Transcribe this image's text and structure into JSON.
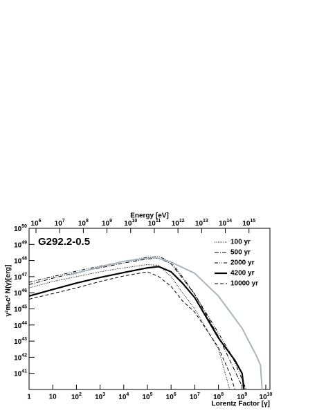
{
  "chart_data": {
    "type": "line",
    "annotation": "G292.2-0.5",
    "xlabel": "Lorentz Factor [γ]",
    "ylabel": "γ²mₑc² N(γ)[erg]",
    "x2label": "Energy [eV]",
    "log_x": true,
    "log_y": true,
    "legend": "upper right",
    "xlim": [
      1,
      15000000000
    ],
    "xticks": [
      1,
      10,
      {
        "value": 100,
        "label": "10^2"
      },
      {
        "value": 1000,
        "label": "10^3"
      },
      {
        "value": 10000,
        "label": "10^4"
      },
      {
        "value": 100000,
        "label": "10^5"
      },
      {
        "value": 1000000,
        "label": "10^6"
      },
      {
        "value": 10000000,
        "label": "10^7"
      },
      {
        "value": 100000000,
        "label": "10^8"
      },
      {
        "value": 1000000000,
        "label": "10^9"
      },
      {
        "value": 10000000000,
        "label": "10^10"
      }
    ],
    "x2lim": [
      511000,
      7665000000000000
    ],
    "x2ticks": [
      {
        "value": 1000000,
        "label": "10^6"
      },
      {
        "value": 10000000,
        "label": "10^7"
      },
      {
        "value": 100000000,
        "label": "10^8"
      },
      {
        "value": 1000000000,
        "label": "10^9"
      },
      {
        "value": 10000000000,
        "label": "10^10"
      },
      {
        "value": 100000000000,
        "label": "10^11"
      },
      {
        "value": 1000000000000,
        "label": "10^12"
      },
      {
        "value": 10000000000000,
        "label": "10^13"
      },
      {
        "value": 100000000000000,
        "label": "10^14"
      },
      {
        "value": 1000000000000000,
        "label": "10^15"
      }
    ],
    "ylim": [
      1e+40,
      1e+50
    ],
    "yticks": [
      {
        "value": 1e+41,
        "label": "10^41"
      },
      {
        "value": 1e+42,
        "label": "10^42"
      },
      {
        "value": 1e+43,
        "label": "10^43"
      },
      {
        "value": 1e+44,
        "label": "10^44"
      },
      {
        "value": 1e+45,
        "label": "10^45"
      },
      {
        "value": 1e+46,
        "label": "10^46"
      },
      {
        "value": 1e+47,
        "label": "10^47"
      },
      {
        "value": 1e+48,
        "label": "10^48"
      },
      {
        "value": 1e+49,
        "label": "10^49"
      },
      {
        "value": 1e+50,
        "label": "10^50"
      }
    ],
    "series": [
      {
        "name": "100 yr",
        "color": "#000000",
        "dash": "1,1.5",
        "width": 1,
        "x": [
          1,
          10,
          100,
          1000,
          10000,
          100000,
          300000,
          1000000,
          3000000,
          10000000,
          100000000,
          300000000
        ],
        "values": [
          2e+46,
          5e+46,
          1e+47,
          2e+47,
          3.5e+47,
          5.6e+47,
          5e+47,
          1e+47,
          1e+46,
          1e+45,
          3.2e+42,
          1e+40
        ]
      },
      {
        "name": "500 yr",
        "color": "#000000",
        "dash": "6,2,1,2",
        "width": 1,
        "x": [
          1,
          10,
          100,
          1000,
          10000,
          100000,
          300000,
          1000000,
          3000000,
          10000000,
          100000000,
          1000000000
        ],
        "values": [
          3.2e+46,
          8e+46,
          1.8e+47,
          3.5e+47,
          7e+47,
          1.26e+48,
          1.4e+48,
          6.3e+47,
          8e+46,
          8e+45,
          2e+43,
          1.6e+40
        ]
      },
      {
        "name": "2000 yr",
        "color": "#000000",
        "dash": "5,2,1,2,1,2",
        "width": 1,
        "x": [
          1,
          10,
          100,
          1000,
          10000,
          100000,
          300000,
          1000000,
          3000000,
          10000000,
          100000000,
          400000000,
          1500000000
        ],
        "values": [
          4.5e+46,
          1e+47,
          2.2e+47,
          4.5e+47,
          8.9e+47,
          1.6e+48,
          1.8e+48,
          8e+47,
          1e+47,
          8e+45,
          3.2e+43,
          1e+42,
          1e+40
        ]
      },
      {
        "name": "4200 yr",
        "color": "#000000",
        "dash": "none",
        "width": 2.2,
        "x": [
          1,
          10,
          100,
          1000,
          10000,
          100000,
          300000,
          1000000,
          3000000,
          10000000,
          100000000,
          500000000,
          1000000000,
          1200000000
        ],
        "values": [
          6.3e+45,
          1.6e+46,
          4e+46,
          8.9e+46,
          1.8e+47,
          3.5e+47,
          4.2e+47,
          2e+47,
          4e+46,
          5e+45,
          1.6e+43,
          6.3e+41,
          1e+41,
          1e+40
        ]
      },
      {
        "name": "10000 yr",
        "color": "#000000",
        "dash": "5,3",
        "width": 1,
        "x": [
          1,
          10,
          100,
          1000,
          10000,
          100000,
          300000,
          1000000,
          3000000,
          10000000,
          100000000,
          300000000,
          500000000
        ],
        "values": [
          4e+45,
          8.9e+45,
          2e+46,
          5e+46,
          1.1e+47,
          2e+47,
          1e+47,
          2.5e+46,
          3.2e+45,
          6.3e+44,
          4e+42,
          1e+41,
          1e+40
        ]
      },
      {
        "color": "#a9b4bd",
        "dash": "none",
        "width": 2,
        "x": [
          50,
          1000,
          10000,
          200000,
          1000000,
          10000000,
          100000000,
          1000000000,
          4000000000,
          6000000000,
          7000000000
        ],
        "values": [
          1.26e+47,
          4e+47,
          8.9e+47,
          1.6e+48,
          8e+47,
          1.6e+47,
          6.3e+45,
          6.3e+43,
          1.26e+42,
          3.2e+41,
          1e+40
        ]
      }
    ]
  }
}
